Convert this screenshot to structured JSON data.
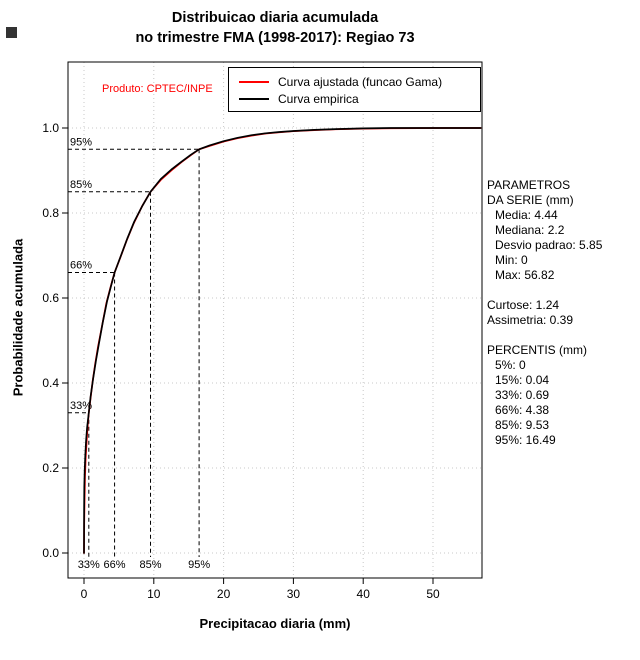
{
  "chart_data": {
    "type": "line",
    "title": [
      "Distribuicao diaria acumulada",
      "no trimestre FMA (1998-2017): Regiao 73"
    ],
    "xlabel": "Precipitacao diaria (mm)",
    "ylabel": "Probabilidade acumulada",
    "x_ticks": [
      0,
      10,
      20,
      30,
      40,
      50
    ],
    "x_tick_labels": [
      "0",
      "10",
      "20",
      "30",
      "40",
      "50"
    ],
    "y_ticks": [
      0.0,
      0.2,
      0.4,
      0.6,
      0.8,
      1.0
    ],
    "y_tick_labels": [
      "0.0",
      "0.2",
      "0.4",
      "0.6",
      "0.8",
      "1.0"
    ],
    "xlim": [
      -2.3,
      59.1
    ],
    "ylim": [
      -0.06,
      1.16
    ],
    "grid": true,
    "grid_color": "#c8c8c8",
    "legend_position": "top-inside",
    "annotation": {
      "text": "Produto: CPTEC/INPE",
      "color": "#ff0000"
    },
    "series": [
      {
        "name": "Curva ajustada (funcao Gama)",
        "color": "#ff0000",
        "points": [
          [
            0,
            0
          ],
          [
            0.03,
            0.07
          ],
          [
            0.08,
            0.13
          ],
          [
            0.15,
            0.18
          ],
          [
            0.25,
            0.225
          ],
          [
            0.38,
            0.265
          ],
          [
            0.53,
            0.3
          ],
          [
            0.69,
            0.33
          ],
          [
            0.95,
            0.365
          ],
          [
            1.25,
            0.405
          ],
          [
            1.6,
            0.445
          ],
          [
            2.0,
            0.485
          ],
          [
            2.6,
            0.535
          ],
          [
            3.2,
            0.587
          ],
          [
            3.8,
            0.625
          ],
          [
            4.38,
            0.66
          ],
          [
            5.2,
            0.695
          ],
          [
            6.1,
            0.735
          ],
          [
            7.1,
            0.775
          ],
          [
            8.3,
            0.815
          ],
          [
            9.53,
            0.85
          ],
          [
            11,
            0.878
          ],
          [
            12.5,
            0.9
          ],
          [
            14,
            0.92
          ],
          [
            15.3,
            0.936
          ],
          [
            16.49,
            0.95
          ],
          [
            18,
            0.958
          ],
          [
            20,
            0.968
          ],
          [
            22,
            0.976
          ],
          [
            24,
            0.982
          ],
          [
            26,
            0.987
          ],
          [
            28,
            0.99
          ],
          [
            30,
            0.9925
          ],
          [
            33,
            0.995
          ],
          [
            36,
            0.997
          ],
          [
            40,
            0.9985
          ],
          [
            44,
            0.9993
          ],
          [
            48,
            0.9997
          ],
          [
            52,
            0.9999
          ],
          [
            56.82,
            1.0
          ]
        ]
      },
      {
        "name": "Curva empirica",
        "color": "#000000",
        "points": [
          [
            0,
            0
          ],
          [
            0.02,
            0.1
          ],
          [
            0.05,
            0.155
          ],
          [
            0.1,
            0.195
          ],
          [
            0.18,
            0.23
          ],
          [
            0.3,
            0.265
          ],
          [
            0.45,
            0.295
          ],
          [
            0.69,
            0.33
          ],
          [
            0.95,
            0.368
          ],
          [
            1.3,
            0.41
          ],
          [
            1.7,
            0.452
          ],
          [
            2.1,
            0.49
          ],
          [
            2.7,
            0.543
          ],
          [
            3.3,
            0.592
          ],
          [
            3.9,
            0.63
          ],
          [
            4.38,
            0.66
          ],
          [
            5.3,
            0.7
          ],
          [
            6.2,
            0.74
          ],
          [
            7.2,
            0.78
          ],
          [
            8.4,
            0.818
          ],
          [
            9.53,
            0.85
          ],
          [
            11,
            0.88
          ],
          [
            12.5,
            0.902
          ],
          [
            14,
            0.921
          ],
          [
            15.3,
            0.937
          ],
          [
            16.49,
            0.95
          ],
          [
            18,
            0.959
          ],
          [
            20,
            0.969
          ],
          [
            22,
            0.977
          ],
          [
            24,
            0.983
          ],
          [
            26,
            0.9875
          ],
          [
            28,
            0.9905
          ],
          [
            30,
            0.993
          ],
          [
            33,
            0.9955
          ],
          [
            36,
            0.9975
          ],
          [
            40,
            0.999
          ],
          [
            44,
            1.0
          ],
          [
            50,
            1.0
          ],
          [
            56.82,
            1.0
          ]
        ]
      }
    ],
    "percentile_guides": [
      {
        "label": "33%",
        "p": 0.33,
        "x": 0.69
      },
      {
        "label": "66%",
        "p": 0.66,
        "x": 4.38
      },
      {
        "label": "85%",
        "p": 0.85,
        "x": 9.53
      },
      {
        "label": "95%",
        "p": 0.95,
        "x": 16.49
      }
    ]
  },
  "side_panel": {
    "lines": [
      "PARAMETROS",
      "DA SERIE (mm)",
      "Media: 4.44",
      "Mediana: 2.2",
      "Desvio padrao: 5.85",
      "Min: 0",
      "Max: 56.82",
      "",
      "Curtose: 1.24",
      "Assimetria: 0.39",
      "",
      "PERCENTIS (mm)",
      "5%: 0",
      "15%: 0.04",
      "33%: 0.69",
      "66%: 4.38",
      "85%: 9.53",
      "95%: 16.49"
    ]
  }
}
